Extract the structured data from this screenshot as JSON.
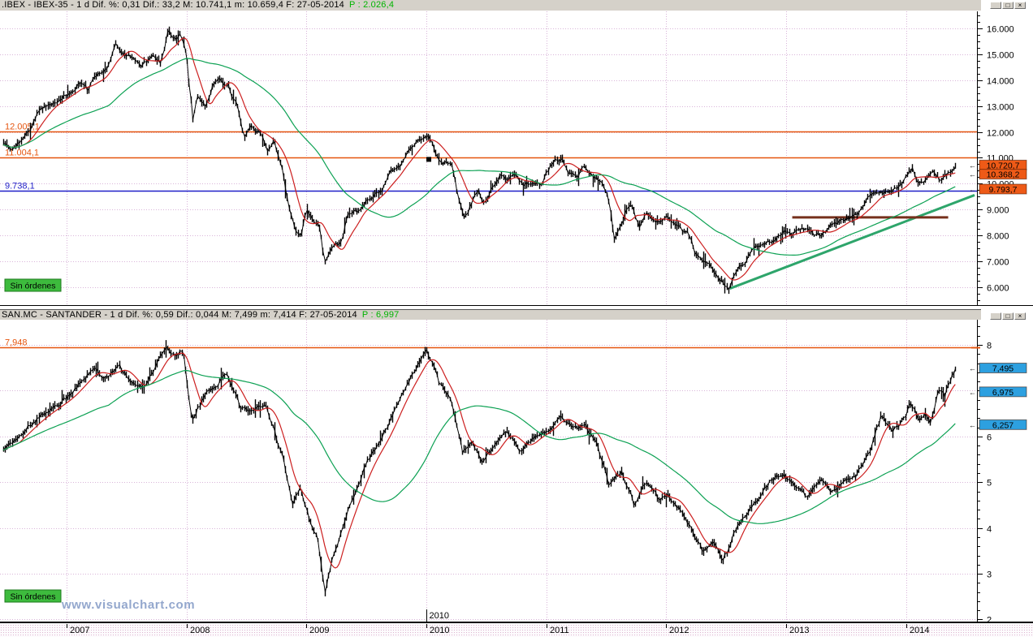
{
  "watermark": "www.visualchart.com",
  "window_controls": [
    {
      "name": "minimize",
      "glyph": "_"
    },
    {
      "name": "maximize",
      "glyph": "□"
    },
    {
      "name": "close",
      "glyph": "×"
    }
  ],
  "grid_color": "#d9b4d9",
  "chart_data": [
    {
      "type": "candlestick",
      "symbol": ".IBEX",
      "instrument": "IBEX-35",
      "title_left": ".IBEX - IBEX-35 -  1 d  Dif. %: 0,31  Dif.: 33,2  M: 10.741,1  m: 10.659,4  F: 27-05-2014",
      "title_p": "P : 2.026,4",
      "no_orders": "Sin órdenes",
      "x_range": [
        2006.445,
        2014.59
      ],
      "x_year_ticks": [
        2007,
        2008,
        2009,
        2010,
        2011,
        2012,
        2013,
        2014
      ],
      "y_top": 16660,
      "y_bottom": 5277,
      "y_minor_step": 250,
      "y_ticks": [
        {
          "v": 16000,
          "label": "16.000"
        },
        {
          "v": 15000,
          "label": "15.000"
        },
        {
          "v": 14000,
          "label": "14.000"
        },
        {
          "v": 13000,
          "label": "13.000"
        },
        {
          "v": 12000,
          "label": "12.000"
        },
        {
          "v": 11000,
          "label": "11.000"
        },
        {
          "v": 10000,
          "label": "10.000"
        },
        {
          "v": 9000,
          "label": "9.000"
        },
        {
          "v": 8000,
          "label": "8.000"
        },
        {
          "v": 7000,
          "label": "7.000"
        },
        {
          "v": 6000,
          "label": "6.000"
        }
      ],
      "h_lines": [
        {
          "v": 12005.1,
          "label": "12.005,1",
          "color": "#e5550f"
        },
        {
          "v": 11004.1,
          "label": "11.004,1",
          "color": "#e5550f"
        },
        {
          "v": 9738.1,
          "label": "9.738,1",
          "color": "#1f1fc8"
        }
      ],
      "segments": [
        {
          "name": "trend-line",
          "x1": 2012.53,
          "v1": 5950,
          "x2": 2014.57,
          "v2": 9560,
          "color": "#2ea56b",
          "width": 3
        },
        {
          "name": "resistance-segment",
          "x1": 2013.05,
          "v1": 8700,
          "x2": 2014.35,
          "v2": 8700,
          "color": "#76301c",
          "width": 3
        }
      ],
      "markers": [
        {
          "t": 2010.02,
          "v": 10940
        }
      ],
      "badges": [
        {
          "label": "10.720,7",
          "v": 10720.7,
          "bg": "#ee5a17"
        },
        {
          "label": "10.368,2",
          "v": 10368.2,
          "bg": "#ee5a17"
        },
        {
          "label": "9.793,7",
          "v": 9793.7,
          "bg": "#ee5a17"
        }
      ],
      "ma_fast": {
        "color": "#cc1f1f",
        "window": 12
      },
      "ma_slow": {
        "color": "#0ca153",
        "window": 60
      },
      "series": [
        [
          2006.47,
          11500
        ],
        [
          2006.55,
          11300
        ],
        [
          2006.7,
          12150
        ],
        [
          2006.78,
          12850
        ],
        [
          2006.89,
          13160
        ],
        [
          2006.99,
          13480
        ],
        [
          2007.12,
          13900
        ],
        [
          2007.17,
          13650
        ],
        [
          2007.26,
          14270
        ],
        [
          2007.33,
          14430
        ],
        [
          2007.41,
          15430
        ],
        [
          2007.46,
          15060
        ],
        [
          2007.55,
          14960
        ],
        [
          2007.62,
          14500
        ],
        [
          2007.71,
          14960
        ],
        [
          2007.78,
          14680
        ],
        [
          2007.85,
          15950
        ],
        [
          2007.9,
          15600
        ],
        [
          2007.95,
          15750
        ],
        [
          2008.0,
          14900
        ],
        [
          2008.05,
          12450
        ],
        [
          2008.09,
          13270
        ],
        [
          2008.16,
          12960
        ],
        [
          2008.22,
          13900
        ],
        [
          2008.27,
          14200
        ],
        [
          2008.34,
          13800
        ],
        [
          2008.42,
          13000
        ],
        [
          2008.48,
          11760
        ],
        [
          2008.54,
          12200
        ],
        [
          2008.61,
          12000
        ],
        [
          2008.67,
          11300
        ],
        [
          2008.73,
          11600
        ],
        [
          2008.8,
          10500
        ],
        [
          2008.85,
          9100
        ],
        [
          2008.9,
          8300
        ],
        [
          2008.95,
          8000
        ],
        [
          2009.0,
          8900
        ],
        [
          2009.05,
          8600
        ],
        [
          2009.11,
          8300
        ],
        [
          2009.15,
          6960
        ],
        [
          2009.19,
          7300
        ],
        [
          2009.23,
          7600
        ],
        [
          2009.29,
          7700
        ],
        [
          2009.34,
          8700
        ],
        [
          2009.42,
          8900
        ],
        [
          2009.49,
          9300
        ],
        [
          2009.56,
          9600
        ],
        [
          2009.63,
          9800
        ],
        [
          2009.69,
          10400
        ],
        [
          2009.78,
          10700
        ],
        [
          2009.83,
          11200
        ],
        [
          2009.88,
          11500
        ],
        [
          2009.95,
          11700
        ],
        [
          2010.01,
          11950
        ],
        [
          2010.07,
          11200
        ],
        [
          2010.13,
          10800
        ],
        [
          2010.2,
          10900
        ],
        [
          2010.27,
          9400
        ],
        [
          2010.32,
          8700
        ],
        [
          2010.37,
          9300
        ],
        [
          2010.43,
          9700
        ],
        [
          2010.48,
          9200
        ],
        [
          2010.54,
          9900
        ],
        [
          2010.61,
          10400
        ],
        [
          2010.67,
          10100
        ],
        [
          2010.74,
          10300
        ],
        [
          2010.81,
          9900
        ],
        [
          2010.88,
          10100
        ],
        [
          2010.95,
          10000
        ],
        [
          2011.0,
          10400
        ],
        [
          2011.06,
          10850
        ],
        [
          2011.13,
          11000
        ],
        [
          2011.18,
          10500
        ],
        [
          2011.25,
          10300
        ],
        [
          2011.31,
          10600
        ],
        [
          2011.37,
          10400
        ],
        [
          2011.44,
          10150
        ],
        [
          2011.51,
          9600
        ],
        [
          2011.56,
          7900
        ],
        [
          2011.6,
          8300
        ],
        [
          2011.66,
          8900
        ],
        [
          2011.71,
          9250
        ],
        [
          2011.77,
          8300
        ],
        [
          2011.83,
          8900
        ],
        [
          2011.89,
          8500
        ],
        [
          2011.96,
          8600
        ],
        [
          2012.01,
          8700
        ],
        [
          2012.07,
          8500
        ],
        [
          2012.13,
          8200
        ],
        [
          2012.19,
          8000
        ],
        [
          2012.24,
          7300
        ],
        [
          2012.3,
          7100
        ],
        [
          2012.35,
          6900
        ],
        [
          2012.4,
          6600
        ],
        [
          2012.46,
          6250
        ],
        [
          2012.52,
          5960
        ],
        [
          2012.59,
          6800
        ],
        [
          2012.65,
          6950
        ],
        [
          2012.71,
          7350
        ],
        [
          2012.78,
          7600
        ],
        [
          2012.84,
          7750
        ],
        [
          2012.91,
          7900
        ],
        [
          2012.98,
          8150
        ],
        [
          2013.05,
          8000
        ],
        [
          2013.11,
          8200
        ],
        [
          2013.18,
          8350
        ],
        [
          2013.25,
          8000
        ],
        [
          2013.32,
          8100
        ],
        [
          2013.38,
          8400
        ],
        [
          2013.45,
          8500
        ],
        [
          2013.52,
          8700
        ],
        [
          2013.59,
          8750
        ],
        [
          2013.65,
          9300
        ],
        [
          2013.72,
          9500
        ],
        [
          2013.79,
          9700
        ],
        [
          2013.86,
          9600
        ],
        [
          2013.93,
          9900
        ],
        [
          2014.0,
          10300
        ],
        [
          2014.05,
          10580
        ],
        [
          2014.1,
          10000
        ],
        [
          2014.16,
          10200
        ],
        [
          2014.22,
          10500
        ],
        [
          2014.27,
          10150
        ],
        [
          2014.33,
          10400
        ],
        [
          2014.41,
          10720
        ]
      ]
    },
    {
      "type": "candlestick",
      "symbol": "SAN.MC",
      "instrument": "SANTANDER",
      "title_left": "SAN.MC - SANTANDER -  1 d  Dif. %: 0,59  Dif.: 0,044  M: 7,499  m: 7,414  F: 27-05-2014",
      "title_p": "P : 6,997",
      "no_orders": "Sin órdenes",
      "x_range": [
        2006.445,
        2014.59
      ],
      "x_year_ticks": [
        2007,
        2008,
        2009,
        2010,
        2011,
        2012,
        2013,
        2014
      ],
      "y_top": 8.55,
      "y_bottom": 1.92,
      "y_minor_step": 0.2,
      "y_ticks": [
        {
          "v": 8,
          "label": "8"
        },
        {
          "v": 7,
          "label": "7"
        },
        {
          "v": 6,
          "label": "6"
        },
        {
          "v": 5,
          "label": "5"
        },
        {
          "v": 4,
          "label": "4"
        },
        {
          "v": 3,
          "label": "3"
        },
        {
          "v": 2,
          "label": "2"
        }
      ],
      "h_lines": [
        {
          "v": 7.948,
          "label": "7,948",
          "color": "#e5550f"
        }
      ],
      "segments": [],
      "markers": [],
      "badges": [
        {
          "label": "7,495",
          "v": 7.495,
          "bg": "#2da0e0"
        },
        {
          "label": "6,975",
          "v": 6.975,
          "bg": "#2da0e0"
        },
        {
          "label": "6,257",
          "v": 6.257,
          "bg": "#2da0e0"
        }
      ],
      "date_marker": {
        "t": 2010.0,
        "label": "2010"
      },
      "ma_fast": {
        "color": "#cc1f1f",
        "window": 10
      },
      "ma_slow": {
        "color": "#0ca153",
        "window": 60
      },
      "series": [
        [
          2006.47,
          5.7
        ],
        [
          2006.58,
          5.96
        ],
        [
          2006.72,
          6.32
        ],
        [
          2006.85,
          6.58
        ],
        [
          2007.0,
          6.85
        ],
        [
          2007.12,
          7.2
        ],
        [
          2007.22,
          7.47
        ],
        [
          2007.33,
          7.29
        ],
        [
          2007.43,
          7.56
        ],
        [
          2007.53,
          7.2
        ],
        [
          2007.63,
          7.02
        ],
        [
          2007.73,
          7.47
        ],
        [
          2007.83,
          7.91
        ],
        [
          2007.9,
          7.73
        ],
        [
          2007.97,
          7.9
        ],
        [
          2008.04,
          6.35
        ],
        [
          2008.14,
          6.85
        ],
        [
          2008.24,
          7.11
        ],
        [
          2008.34,
          7.35
        ],
        [
          2008.44,
          6.67
        ],
        [
          2008.54,
          6.49
        ],
        [
          2008.65,
          6.76
        ],
        [
          2008.75,
          5.96
        ],
        [
          2008.81,
          5.43
        ],
        [
          2008.88,
          4.54
        ],
        [
          2008.95,
          4.9
        ],
        [
          2009.02,
          4.19
        ],
        [
          2009.09,
          3.83
        ],
        [
          2009.15,
          2.6
        ],
        [
          2009.23,
          3.48
        ],
        [
          2009.32,
          4.19
        ],
        [
          2009.42,
          4.9
        ],
        [
          2009.52,
          5.52
        ],
        [
          2009.63,
          5.96
        ],
        [
          2009.73,
          6.58
        ],
        [
          2009.83,
          7.11
        ],
        [
          2009.93,
          7.56
        ],
        [
          2010.0,
          7.88
        ],
        [
          2010.1,
          7.2
        ],
        [
          2010.2,
          6.85
        ],
        [
          2010.3,
          5.61
        ],
        [
          2010.37,
          5.96
        ],
        [
          2010.47,
          5.43
        ],
        [
          2010.58,
          5.87
        ],
        [
          2010.67,
          6.14
        ],
        [
          2010.78,
          5.7
        ],
        [
          2010.88,
          5.96
        ],
        [
          2011.0,
          6.14
        ],
        [
          2011.12,
          6.49
        ],
        [
          2011.22,
          6.14
        ],
        [
          2011.32,
          6.23
        ],
        [
          2011.42,
          5.87
        ],
        [
          2011.52,
          4.95
        ],
        [
          2011.62,
          5.26
        ],
        [
          2011.73,
          4.54
        ],
        [
          2011.83,
          5.0
        ],
        [
          2011.93,
          4.63
        ],
        [
          2012.01,
          4.72
        ],
        [
          2012.1,
          4.45
        ],
        [
          2012.2,
          4.01
        ],
        [
          2012.3,
          3.48
        ],
        [
          2012.39,
          3.66
        ],
        [
          2012.47,
          3.25
        ],
        [
          2012.57,
          3.92
        ],
        [
          2012.67,
          4.36
        ],
        [
          2012.78,
          4.72
        ],
        [
          2012.88,
          5.08
        ],
        [
          2012.98,
          5.17
        ],
        [
          2013.08,
          4.9
        ],
        [
          2013.18,
          4.63
        ],
        [
          2013.28,
          5.08
        ],
        [
          2013.38,
          4.81
        ],
        [
          2013.49,
          5.0
        ],
        [
          2013.59,
          5.17
        ],
        [
          2013.69,
          5.61
        ],
        [
          2013.79,
          6.46
        ],
        [
          2013.89,
          6.14
        ],
        [
          2013.99,
          6.4
        ],
        [
          2014.03,
          6.71
        ],
        [
          2014.1,
          6.35
        ],
        [
          2014.16,
          6.53
        ],
        [
          2014.2,
          6.23
        ],
        [
          2014.27,
          7.06
        ],
        [
          2014.32,
          6.9
        ],
        [
          2014.37,
          7.26
        ],
        [
          2014.41,
          7.47
        ]
      ]
    }
  ]
}
